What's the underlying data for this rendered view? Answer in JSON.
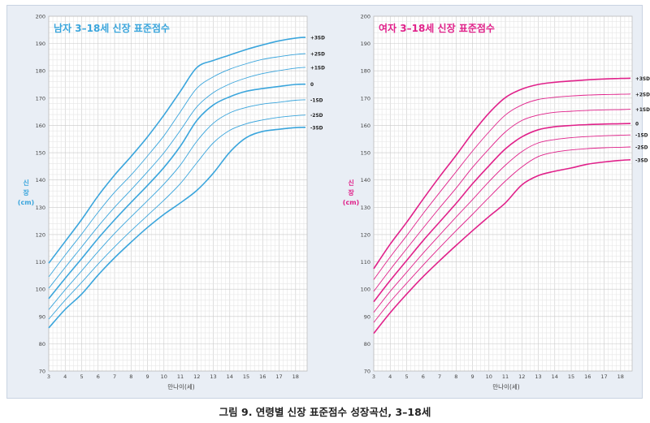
{
  "caption": "그림 9. 연령별 신장 표준점수 성장곡선, 3–18세",
  "chart_data": [
    {
      "type": "line",
      "title": "남자 3–18세 신장 표준점수",
      "xlabel": "만나이(세)",
      "ylabel_lines": [
        "신",
        "장",
        "(cm)"
      ],
      "xlim": [
        3,
        18.7
      ],
      "ylim": [
        70,
        200
      ],
      "x_ticks": [
        3,
        4,
        5,
        6,
        7,
        8,
        9,
        10,
        11,
        12,
        13,
        14,
        15,
        16,
        17,
        18
      ],
      "y_ticks": [
        70,
        80,
        90,
        100,
        110,
        120,
        130,
        140,
        150,
        160,
        170,
        180,
        190,
        200
      ],
      "grid": true,
      "color": "#3aa5dc",
      "x": [
        3,
        4,
        5,
        6,
        7,
        8,
        9,
        10,
        11,
        12,
        13,
        14,
        15,
        16,
        17,
        18,
        18.6
      ],
      "series": [
        {
          "name": "+3SD",
          "values": [
            109.5,
            117.5,
            125.5,
            134.2,
            141.8,
            148.6,
            155.8,
            163.8,
            172.5,
            181.2,
            183.8,
            185.8,
            187.8,
            189.5,
            191.0,
            192.0,
            192.3
          ]
        },
        {
          "name": "+2SD",
          "values": [
            104.5,
            112.5,
            120.2,
            128.2,
            135.5,
            141.8,
            148.8,
            156.2,
            165.0,
            173.6,
            177.8,
            180.6,
            182.6,
            184.2,
            185.2,
            186.0,
            186.3
          ]
        },
        {
          "name": "+1SD",
          "values": [
            100.3,
            108.0,
            115.5,
            123.0,
            130.0,
            136.4,
            143.0,
            150.0,
            158.2,
            166.8,
            172.0,
            175.2,
            177.4,
            179.0,
            180.1,
            181.0,
            181.3
          ]
        },
        {
          "name": "0",
          "values": [
            96.5,
            104.0,
            111.2,
            118.6,
            125.4,
            131.8,
            138.0,
            144.6,
            152.4,
            161.8,
            167.5,
            170.5,
            172.5,
            173.5,
            174.3,
            175.0,
            175.1
          ]
        },
        {
          "name": "-1SD",
          "values": [
            92.5,
            99.8,
            106.7,
            113.8,
            120.4,
            126.5,
            132.4,
            138.5,
            145.5,
            154.2,
            160.8,
            164.6,
            166.6,
            167.8,
            168.5,
            169.2,
            169.4
          ]
        },
        {
          "name": "-2SD",
          "values": [
            89.0,
            96.0,
            102.5,
            109.2,
            115.5,
            121.4,
            127.0,
            132.6,
            138.7,
            146.3,
            153.6,
            158.2,
            160.6,
            162.0,
            163.0,
            163.6,
            163.8
          ]
        },
        {
          "name": "-3SD",
          "values": [
            85.8,
            92.6,
            98.2,
            105.2,
            111.5,
            117.2,
            122.6,
            127.4,
            131.6,
            136.2,
            142.5,
            150.2,
            155.5,
            157.8,
            158.6,
            159.2,
            159.3
          ]
        }
      ]
    },
    {
      "type": "line",
      "title": "여자 3–18세 신장 표준점수",
      "xlabel": "만나이(세)",
      "ylabel_lines": [
        "신",
        "장",
        "(cm)"
      ],
      "xlim": [
        3,
        18.7
      ],
      "ylim": [
        70,
        200
      ],
      "x_ticks": [
        3,
        4,
        5,
        6,
        7,
        8,
        9,
        10,
        11,
        12,
        13,
        14,
        15,
        16,
        17,
        18
      ],
      "y_ticks": [
        70,
        80,
        90,
        100,
        110,
        120,
        130,
        140,
        150,
        160,
        170,
        180,
        190,
        200
      ],
      "grid": true,
      "color": "#e0218a",
      "x": [
        3,
        4,
        5,
        6,
        7,
        8,
        9,
        10,
        11,
        12,
        13,
        14,
        15,
        16,
        17,
        18,
        18.6
      ],
      "series": [
        {
          "name": "+3SD",
          "values": [
            107.5,
            116.5,
            124.5,
            133.0,
            141.2,
            149.0,
            157.2,
            164.5,
            170.2,
            173.3,
            175.0,
            175.8,
            176.3,
            176.7,
            177.0,
            177.2,
            177.3
          ]
        },
        {
          "name": "+2SD",
          "values": [
            103.5,
            111.8,
            119.6,
            127.7,
            135.4,
            143.0,
            150.6,
            157.6,
            163.8,
            167.5,
            169.5,
            170.3,
            170.8,
            171.1,
            171.3,
            171.4,
            171.5
          ]
        },
        {
          "name": "+1SD",
          "values": [
            99.2,
            107.2,
            114.8,
            122.4,
            129.8,
            137.0,
            144.6,
            151.4,
            157.6,
            161.8,
            163.8,
            164.8,
            165.2,
            165.5,
            165.7,
            165.8,
            165.9
          ]
        },
        {
          "name": "0",
          "values": [
            95.4,
            103.2,
            110.5,
            117.8,
            124.6,
            131.4,
            138.6,
            145.2,
            151.4,
            155.8,
            158.4,
            159.5,
            160.0,
            160.3,
            160.5,
            160.6,
            160.7
          ]
        },
        {
          "name": "-1SD",
          "values": [
            91.5,
            99.2,
            106.2,
            113.2,
            119.8,
            126.4,
            132.8,
            139.4,
            145.4,
            150.4,
            153.6,
            154.8,
            155.5,
            155.9,
            156.2,
            156.4,
            156.5
          ]
        },
        {
          "name": "-2SD",
          "values": [
            87.8,
            95.4,
            102.2,
            108.8,
            115.2,
            121.4,
            127.4,
            133.6,
            139.6,
            144.8,
            148.6,
            150.2,
            151.0,
            151.5,
            151.8,
            152.0,
            152.1
          ]
        },
        {
          "name": "-3SD",
          "values": [
            83.8,
            91.4,
            98.2,
            104.6,
            110.4,
            116.0,
            121.4,
            126.6,
            131.6,
            138.2,
            141.6,
            143.2,
            144.4,
            145.8,
            146.6,
            147.2,
            147.4
          ]
        }
      ]
    }
  ]
}
